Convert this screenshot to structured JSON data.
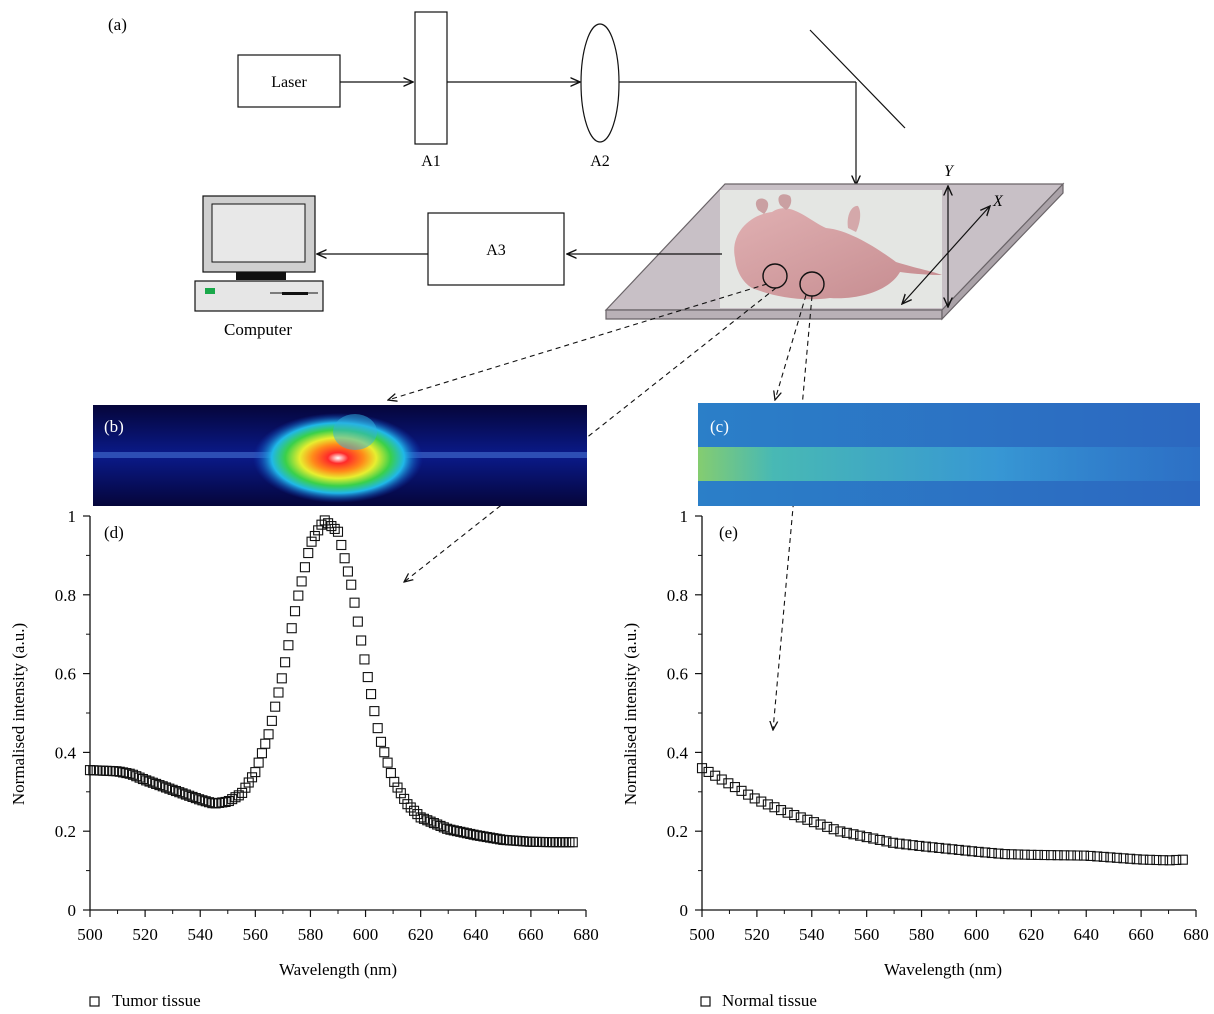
{
  "panel_labels": {
    "a": "(a)",
    "b": "(b)",
    "c": "(c)",
    "d": "(d)",
    "e": "(e)"
  },
  "setup": {
    "laser_label": "Laser",
    "a1_label": "A1",
    "a2_label": "A2",
    "a3_label": "A3",
    "computer_label": "Computer",
    "axis_x_label": "X",
    "axis_y_label": "Y"
  },
  "colors": {
    "stage_fill": "#c8c0c6",
    "stage_edge": "#6a6468",
    "specimen_bg": "#e4e6e3",
    "specimen_skin": "#cf9a9c",
    "computer_screen": "#d9d9d9",
    "computer_led": "#1aa84a",
    "tumor_map_bg": "#0a0a60",
    "normal_map_bg": "#2060b8",
    "marker": "#111111"
  },
  "chart_data": [
    {
      "type": "scatter",
      "panel": "d",
      "xlabel": "Wavelength (nm)",
      "ylabel": "Normalised intensity (a.u.)",
      "xlim": [
        500,
        680
      ],
      "ylim": [
        0,
        1
      ],
      "xticks": [
        500,
        520,
        540,
        560,
        580,
        600,
        620,
        640,
        660,
        680
      ],
      "yticks": [
        0,
        0.2,
        0.4,
        0.6,
        0.8,
        1
      ],
      "ytick_labels": [
        "0",
        "0.2",
        "0.4",
        "0.6",
        "0.8",
        "1"
      ],
      "marker": "open-square",
      "legend": "Tumor tissue",
      "curve_points": [
        [
          500,
          0.355
        ],
        [
          510,
          0.352
        ],
        [
          515,
          0.345
        ],
        [
          520,
          0.33
        ],
        [
          530,
          0.305
        ],
        [
          540,
          0.28
        ],
        [
          545,
          0.27
        ],
        [
          550,
          0.275
        ],
        [
          555,
          0.295
        ],
        [
          560,
          0.35
        ],
        [
          565,
          0.45
        ],
        [
          570,
          0.6
        ],
        [
          575,
          0.78
        ],
        [
          580,
          0.93
        ],
        [
          585,
          0.99
        ],
        [
          590,
          0.96
        ],
        [
          595,
          0.82
        ],
        [
          600,
          0.62
        ],
        [
          605,
          0.44
        ],
        [
          610,
          0.33
        ],
        [
          615,
          0.27
        ],
        [
          620,
          0.235
        ],
        [
          630,
          0.205
        ],
        [
          640,
          0.19
        ],
        [
          650,
          0.178
        ],
        [
          660,
          0.173
        ],
        [
          670,
          0.172
        ],
        [
          676,
          0.172
        ]
      ]
    },
    {
      "type": "scatter",
      "panel": "e",
      "xlabel": "Wavelength (nm)",
      "ylabel": "Normalised intensity (a.u.)",
      "xlim": [
        500,
        680
      ],
      "ylim": [
        0,
        1
      ],
      "xticks": [
        500,
        520,
        540,
        560,
        580,
        600,
        620,
        640,
        660,
        680
      ],
      "yticks": [
        0,
        0.2,
        0.4,
        0.6,
        0.8,
        1
      ],
      "ytick_labels": [
        "0",
        "0.2",
        "0.4",
        "0.6",
        "0.8",
        "1"
      ],
      "marker": "open-square",
      "legend": "Normal tissue",
      "curve_points": [
        [
          500,
          0.36
        ],
        [
          505,
          0.34
        ],
        [
          510,
          0.32
        ],
        [
          520,
          0.28
        ],
        [
          530,
          0.25
        ],
        [
          540,
          0.225
        ],
        [
          550,
          0.2
        ],
        [
          560,
          0.185
        ],
        [
          570,
          0.17
        ],
        [
          580,
          0.162
        ],
        [
          590,
          0.155
        ],
        [
          600,
          0.148
        ],
        [
          610,
          0.142
        ],
        [
          620,
          0.14
        ],
        [
          640,
          0.138
        ],
        [
          650,
          0.133
        ],
        [
          660,
          0.128
        ],
        [
          670,
          0.126
        ],
        [
          676,
          0.128
        ]
      ]
    }
  ]
}
